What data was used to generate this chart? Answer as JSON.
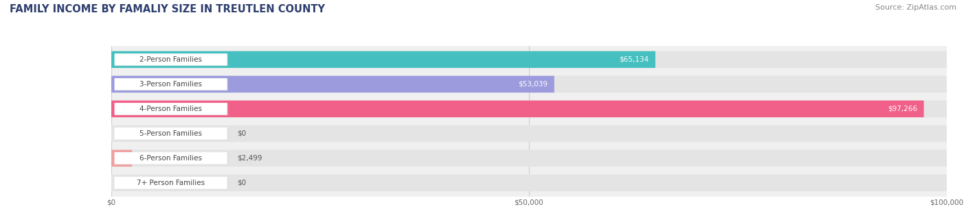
{
  "title": "FAMILY INCOME BY FAMALIY SIZE IN TREUTLEN COUNTY",
  "source": "Source: ZipAtlas.com",
  "categories": [
    "2-Person Families",
    "3-Person Families",
    "4-Person Families",
    "5-Person Families",
    "6-Person Families",
    "7+ Person Families"
  ],
  "values": [
    65134,
    53039,
    97266,
    0,
    2499,
    0
  ],
  "bar_colors": [
    "#45bfbf",
    "#9b9bdd",
    "#f06088",
    "#f5c898",
    "#f0a0a0",
    "#aaccee"
  ],
  "value_labels": [
    "$65,134",
    "$53,039",
    "$97,266",
    "$0",
    "$2,499",
    "$0"
  ],
  "xlim_max": 100000,
  "xtick_labels": [
    "$0",
    "$50,000",
    "$100,000"
  ],
  "fig_bg_color": "#ffffff",
  "chart_bg_color": "#f0f0f0",
  "bar_bg_color": "#e4e4e4",
  "title_fontsize": 10.5,
  "source_fontsize": 8,
  "label_fontsize": 7.5,
  "value_fontsize": 7.5
}
